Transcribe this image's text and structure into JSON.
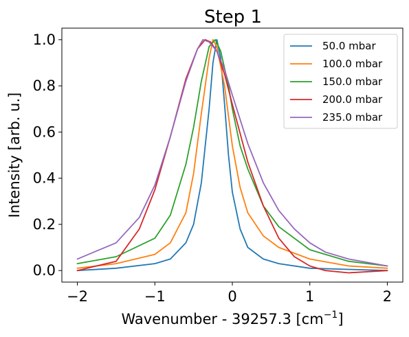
{
  "chart_data": {
    "type": "line",
    "title": "Step 1",
    "xlabel": "Wavenumber - 39257.3 [cm",
    "xlabel_sup": "−1",
    "xlabel_end": "]",
    "ylabel": "Intensity [arb. u.]",
    "xlim": [
      -2.2,
      2.2
    ],
    "ylim": [
      -0.05,
      1.05
    ],
    "xticks": [
      -2,
      -1,
      0,
      1,
      2
    ],
    "xtick_labels": [
      "−2",
      "−1",
      "0",
      "1",
      "2"
    ],
    "yticks": [
      0.0,
      0.2,
      0.4,
      0.6,
      0.8,
      1.0
    ],
    "ytick_labels": [
      "0.0",
      "0.2",
      "0.4",
      "0.6",
      "0.8",
      "1.0"
    ],
    "grid": false,
    "legend_position": "top-right",
    "series": [
      {
        "name": "50.0 mbar",
        "color": "#1f77b4",
        "x": [
          -2.0,
          -1.5,
          -1.0,
          -0.8,
          -0.6,
          -0.5,
          -0.4,
          -0.3,
          -0.25,
          -0.2,
          -0.15,
          -0.1,
          -0.05,
          0.0,
          0.1,
          0.2,
          0.4,
          0.6,
          1.0,
          1.5,
          2.0
        ],
        "y": [
          0.0,
          0.01,
          0.03,
          0.05,
          0.12,
          0.2,
          0.38,
          0.7,
          0.9,
          1.0,
          0.92,
          0.72,
          0.5,
          0.34,
          0.18,
          0.1,
          0.05,
          0.03,
          0.01,
          0.005,
          0.0
        ]
      },
      {
        "name": "100.0 mbar",
        "color": "#ff7f0e",
        "x": [
          -2.0,
          -1.5,
          -1.0,
          -0.8,
          -0.6,
          -0.5,
          -0.4,
          -0.3,
          -0.25,
          -0.2,
          -0.1,
          0.0,
          0.1,
          0.2,
          0.4,
          0.6,
          1.0,
          1.5,
          2.0
        ],
        "y": [
          0.01,
          0.03,
          0.07,
          0.12,
          0.25,
          0.42,
          0.68,
          0.92,
          1.0,
          0.97,
          0.8,
          0.54,
          0.36,
          0.25,
          0.15,
          0.1,
          0.05,
          0.02,
          0.01
        ]
      },
      {
        "name": "150.0 mbar",
        "color": "#2ca02c",
        "x": [
          -2.0,
          -1.5,
          -1.0,
          -0.8,
          -0.6,
          -0.5,
          -0.4,
          -0.3,
          -0.22,
          -0.15,
          -0.05,
          0.0,
          0.1,
          0.2,
          0.4,
          0.6,
          1.0,
          1.5,
          2.0
        ],
        "y": [
          0.03,
          0.06,
          0.14,
          0.24,
          0.46,
          0.62,
          0.82,
          0.97,
          1.0,
          0.95,
          0.8,
          0.7,
          0.54,
          0.44,
          0.28,
          0.19,
          0.09,
          0.04,
          0.02
        ]
      },
      {
        "name": "200.0 mbar",
        "color": "#d62728",
        "x": [
          -2.0,
          -1.5,
          -1.2,
          -1.0,
          -0.8,
          -0.6,
          -0.45,
          -0.35,
          -0.28,
          -0.2,
          -0.1,
          0.0,
          0.2,
          0.4,
          0.6,
          0.8,
          1.0,
          1.2,
          1.5,
          2.0
        ],
        "y": [
          0.0,
          0.04,
          0.18,
          0.35,
          0.58,
          0.83,
          0.96,
          1.0,
          0.99,
          0.95,
          0.85,
          0.72,
          0.47,
          0.28,
          0.14,
          0.06,
          0.02,
          0.0,
          -0.01,
          0.0
        ]
      },
      {
        "name": "235.0 mbar",
        "color": "#9467bd",
        "x": [
          -2.0,
          -1.5,
          -1.2,
          -1.0,
          -0.8,
          -0.6,
          -0.45,
          -0.38,
          -0.3,
          -0.2,
          -0.1,
          0.0,
          0.2,
          0.4,
          0.6,
          0.8,
          1.0,
          1.2,
          1.5,
          2.0
        ],
        "y": [
          0.05,
          0.12,
          0.23,
          0.37,
          0.58,
          0.82,
          0.96,
          1.0,
          0.99,
          0.95,
          0.87,
          0.76,
          0.55,
          0.38,
          0.26,
          0.18,
          0.12,
          0.08,
          0.05,
          0.02
        ]
      }
    ]
  }
}
